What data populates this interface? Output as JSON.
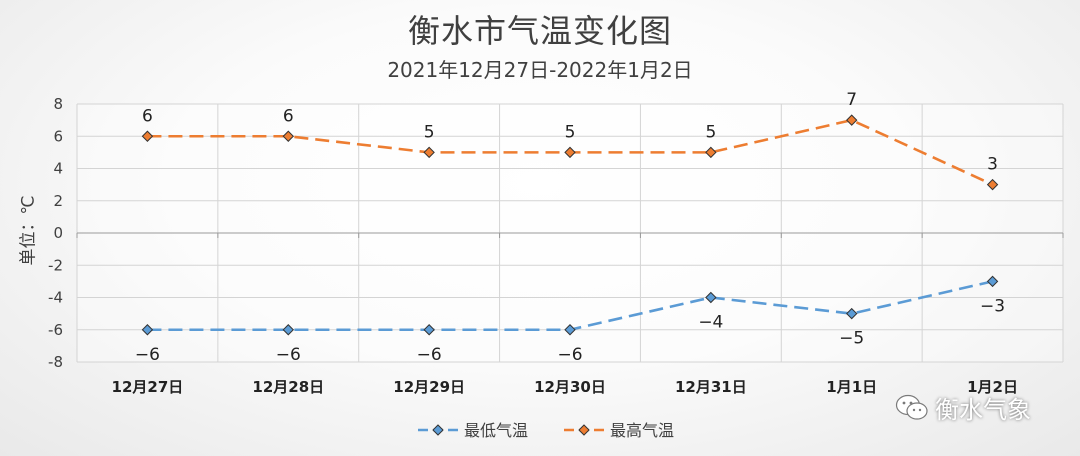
{
  "chart_data": {
    "type": "line",
    "title": "衡水市气温变化图",
    "subtitle": "2021年12月27日-2022年1月2日",
    "ylabel": "单位：℃",
    "categories": [
      "12月27日",
      "12月28日",
      "12月29日",
      "12月30日",
      "12月31日",
      "1月1日",
      "1月2日"
    ],
    "ylim": [
      -8,
      8
    ],
    "yticks": [
      8,
      6,
      4,
      2,
      0,
      -2,
      -4,
      -6,
      -8
    ],
    "grid": true,
    "legend_position": "bottom",
    "series": [
      {
        "name": "最低气温",
        "values": [
          -6,
          -6,
          -6,
          -6,
          -4,
          -5,
          -3
        ],
        "data_labels": [
          "−6",
          "−6",
          "−6",
          "−6",
          "−4",
          "−5",
          "−3"
        ],
        "color": "#5b9bd5",
        "line_style": "dashed",
        "marker": "diamond"
      },
      {
        "name": "最高气温",
        "values": [
          6,
          6,
          5,
          5,
          5,
          7,
          3
        ],
        "data_labels": [
          "6",
          "6",
          "5",
          "5",
          "5",
          "7",
          "3"
        ],
        "color": "#ed7d31",
        "line_style": "dashed",
        "marker": "diamond"
      }
    ]
  },
  "watermark": {
    "text": "衡水气象",
    "icon": "wechat-icon"
  }
}
